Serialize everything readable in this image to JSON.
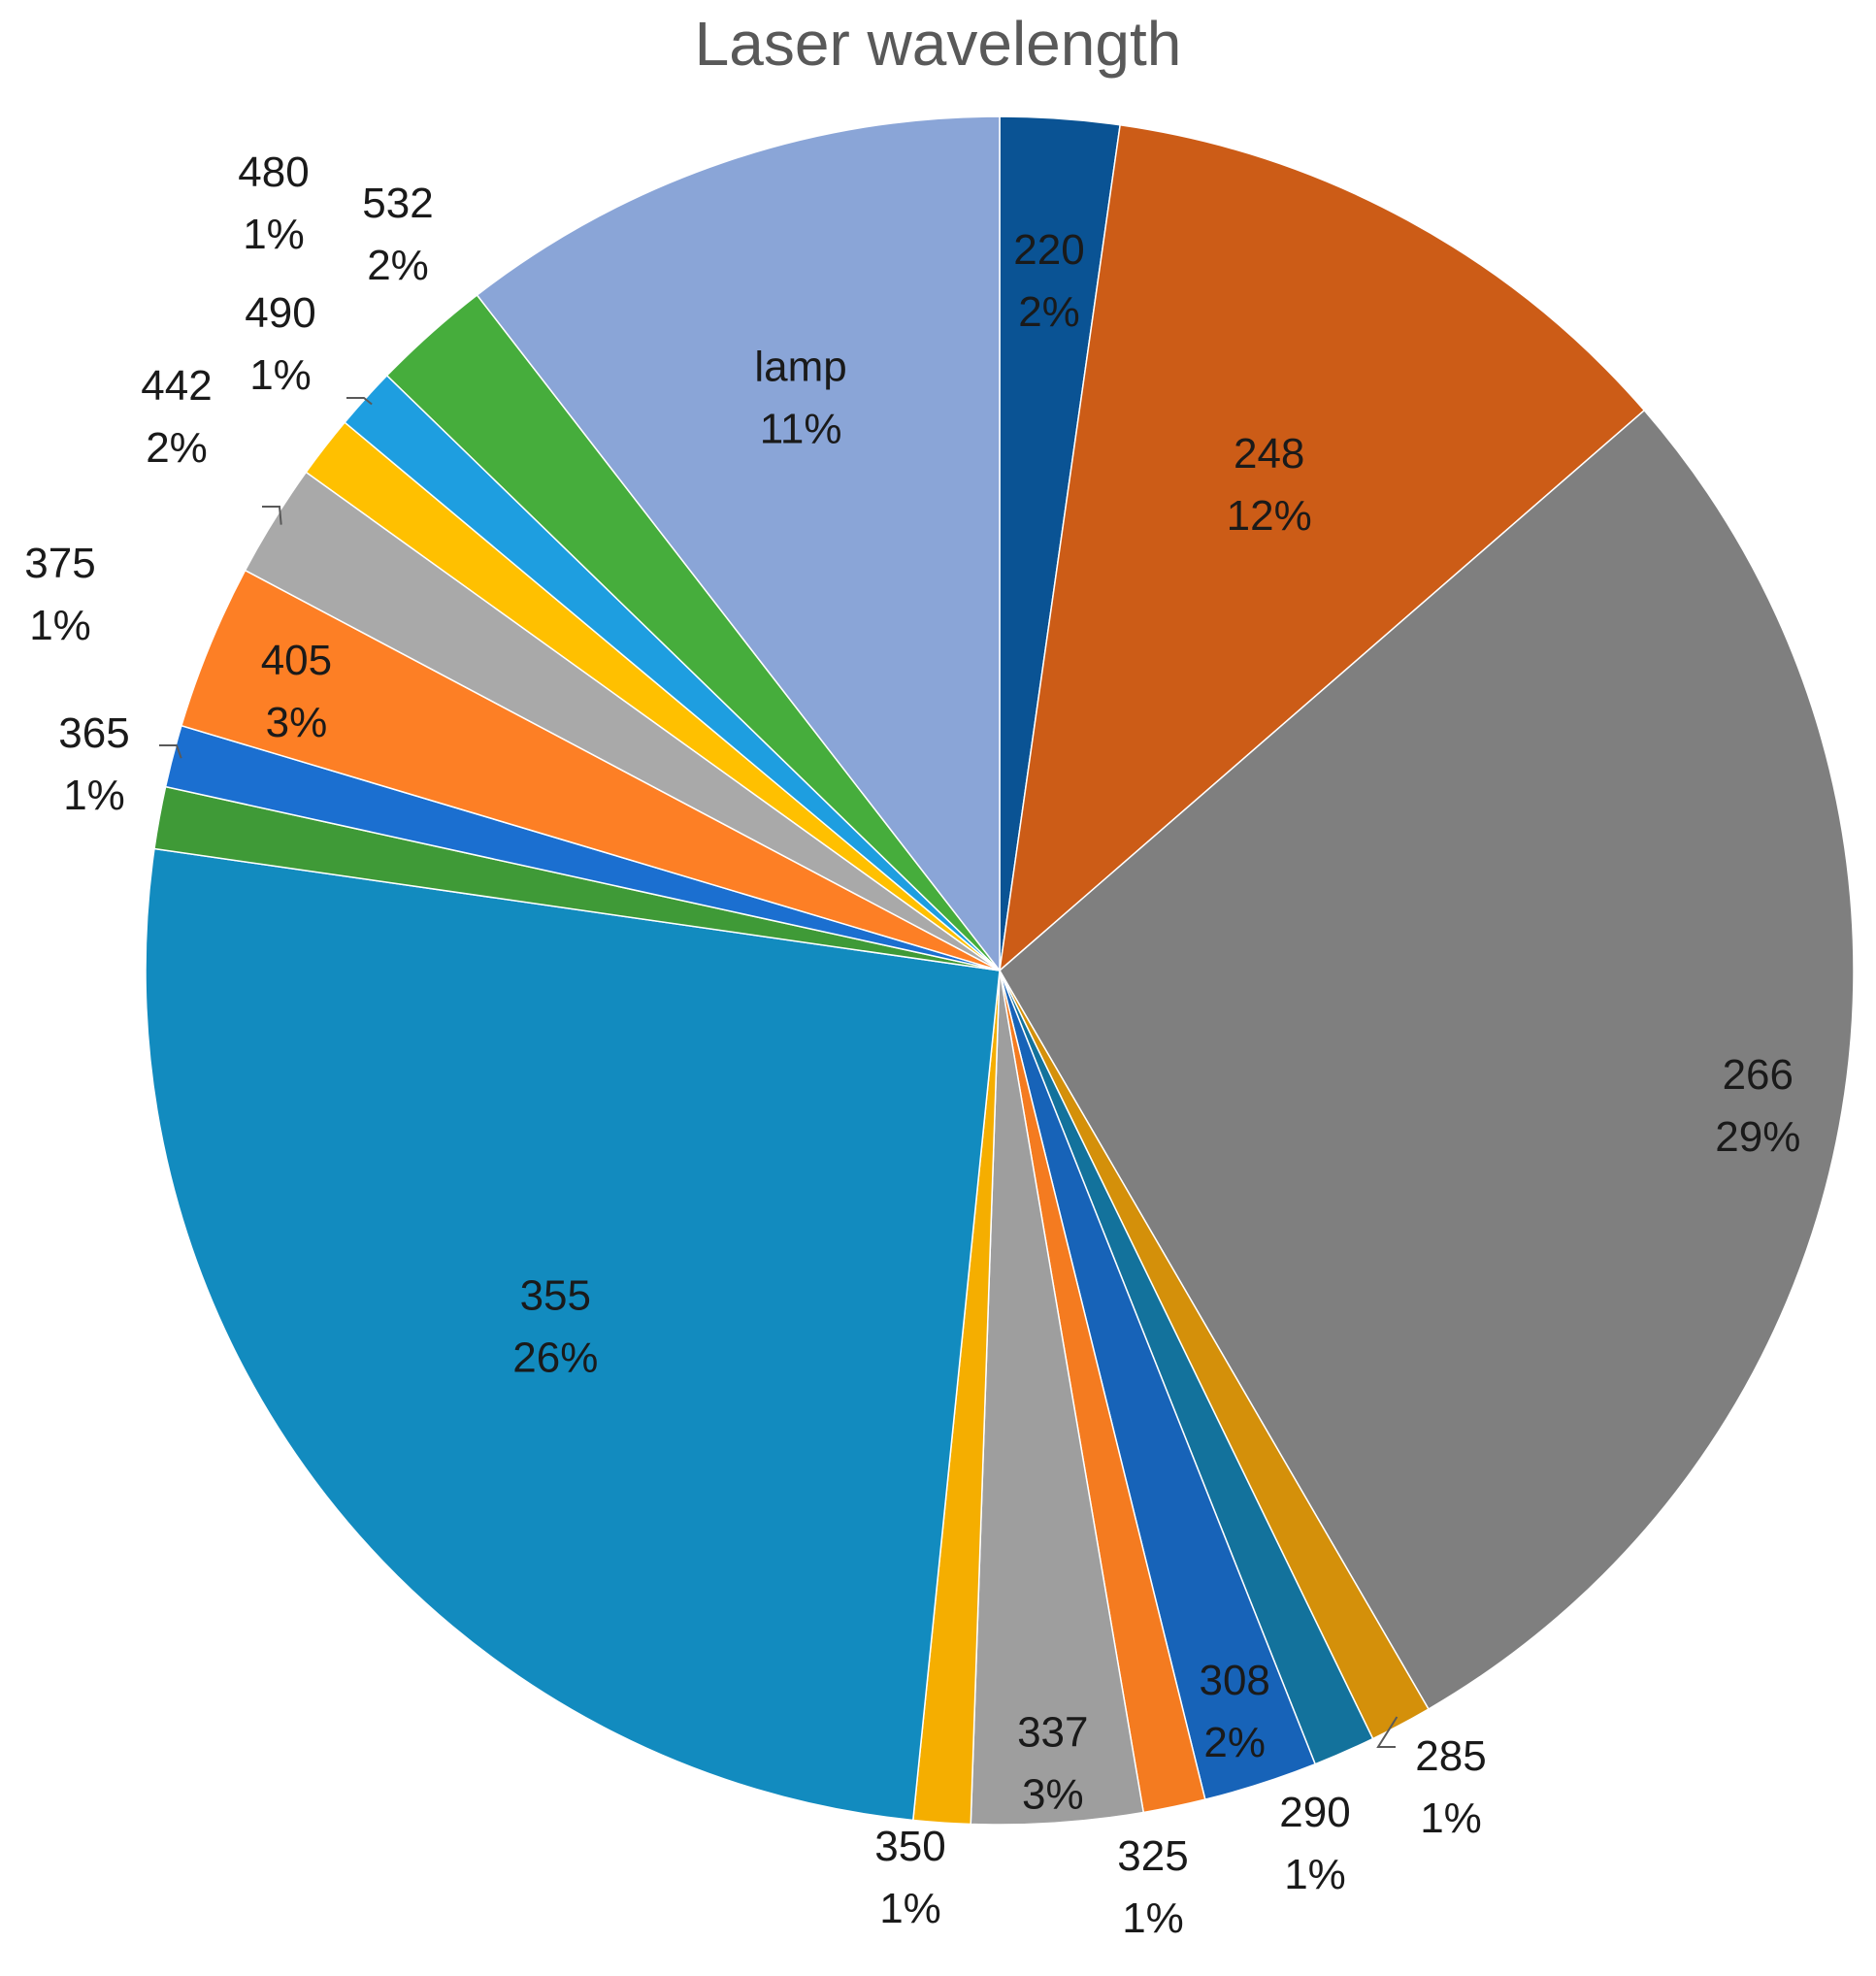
{
  "chart_data": {
    "type": "pie",
    "title": "Laser wavelength",
    "slices": [
      {
        "label": "220",
        "percent_label": "2%",
        "value": 2.3,
        "color": "#0a5394"
      },
      {
        "label": "248",
        "percent_label": "12%",
        "value": 11.6,
        "color": "#cc5c17"
      },
      {
        "label": "266",
        "percent_label": "29%",
        "value": 28.6,
        "color": "#7f7f7f"
      },
      {
        "label": "285",
        "percent_label": "1%",
        "value": 1.2,
        "color": "#d4900a"
      },
      {
        "label": "290",
        "percent_label": "1%",
        "value": 1.2,
        "color": "#13729c"
      },
      {
        "label": "308",
        "percent_label": "2%",
        "value": 2.2,
        "color": "#1763b8"
      },
      {
        "label": "325",
        "percent_label": "1%",
        "value": 1.2,
        "color": "#f47b20"
      },
      {
        "label": "337",
        "percent_label": "3%",
        "value": 3.3,
        "color": "#9e9e9e"
      },
      {
        "label": "350",
        "percent_label": "1%",
        "value": 1.1,
        "color": "#f5ae00"
      },
      {
        "label": "355",
        "percent_label": "26%",
        "value": 26.2,
        "color": "#128bbf"
      },
      {
        "label": "365",
        "percent_label": "1%",
        "value": 1.2,
        "color": "#3f9a37"
      },
      {
        "label": "375",
        "percent_label": "1%",
        "value": 1.2,
        "color": "#1b6fd0"
      },
      {
        "label": "405",
        "percent_label": "3%",
        "value": 3.2,
        "color": "#fd7f25"
      },
      {
        "label": "442",
        "percent_label": "2%",
        "value": 2.2,
        "color": "#a9a9a9"
      },
      {
        "label": "490",
        "percent_label": "1%",
        "value": 1.2,
        "color": "#ffc000"
      },
      {
        "label": "480",
        "percent_label": "1%",
        "value": 1.2,
        "color": "#1e9ee0"
      },
      {
        "label": "532",
        "percent_label": "2%",
        "value": 2.3,
        "color": "#46ad3c"
      },
      {
        "label": "lamp",
        "percent_label": "11%",
        "value": 10.7,
        "color": "#8aa5d7"
      }
    ]
  }
}
